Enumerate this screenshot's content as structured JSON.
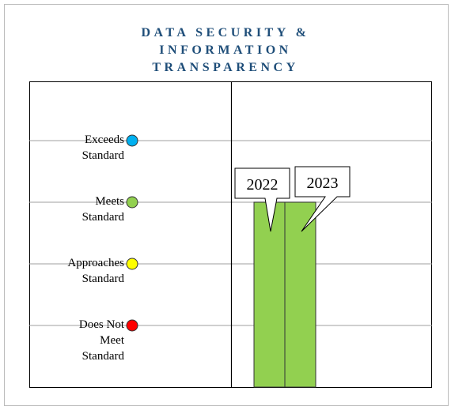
{
  "chart_data": {
    "type": "bar",
    "title": "DATA SECURITY & INFORMATION TRANSPARENCY",
    "categories": [
      "2022",
      "2023"
    ],
    "values": [
      3,
      3
    ],
    "color": "#92d050",
    "ylim": [
      0,
      5
    ],
    "yticks": [
      {
        "value": 1,
        "label": "Does Not Meet Standard"
      },
      {
        "value": 2,
        "label": "Approaches Standard"
      },
      {
        "value": 3,
        "label": "Meets Standard"
      },
      {
        "value": 4,
        "label": "Exceeds Standard"
      }
    ],
    "ytick_colors": [
      "#ff0000",
      "#ffff00",
      "#92d050",
      "#00b0f0"
    ],
    "grid": true
  }
}
